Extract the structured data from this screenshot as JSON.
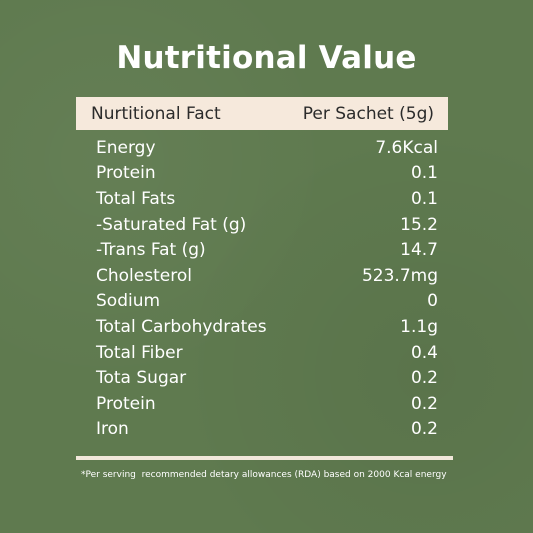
{
  "title": "Nutritional Value",
  "header": {
    "left": "Nurtitional Fact",
    "right": "Per Sachet (5g)"
  },
  "rows": [
    {
      "label": "Energy",
      "value": "7.6Kcal"
    },
    {
      "label": "Protein",
      "value": "0.1"
    },
    {
      "label": "Total Fats",
      "value": "0.1"
    },
    {
      "label": "-Saturated Fat (g)",
      "value": "15.2"
    },
    {
      "label": "-Trans Fat (g)",
      "value": "14.7"
    },
    {
      "label": "Cholesterol",
      "value": "523.7mg"
    },
    {
      "label": "Sodium",
      "value": "0"
    },
    {
      "label": "Total Carbohydrates",
      "value": "1.1g"
    },
    {
      "label": "Total Fiber",
      "value": "0.4"
    },
    {
      "label": "Tota Sugar",
      "value": "0.2"
    },
    {
      "label": "Protein",
      "value": "0.2"
    },
    {
      "label": "Iron",
      "value": "0.2"
    }
  ],
  "footnote": "*Per serving  recommended detary allowances (RDA) based on 2000 Kcal energy",
  "colors": {
    "background": "#5f7a4f",
    "header_bar": "#f6e9dc",
    "text": "#ffffff"
  }
}
